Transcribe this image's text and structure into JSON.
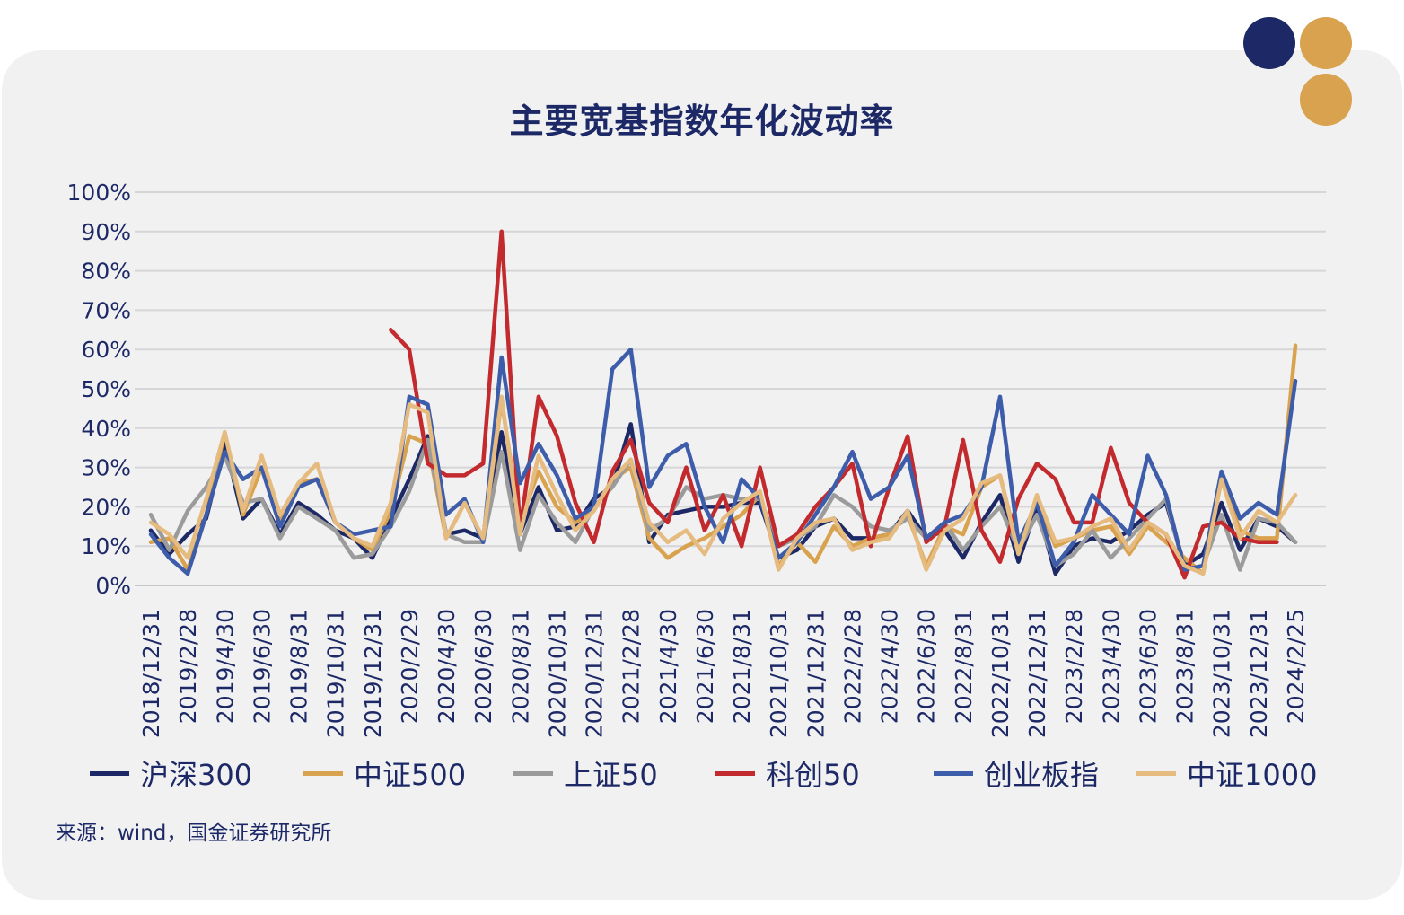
{
  "title": "主要宽基指数年化波动率",
  "source": "来源：wind，国金证券研究所",
  "decor": {
    "dot1": "#1d2966",
    "dot2": "#d9a24f",
    "dot3": "#d9a24f"
  },
  "chart_data": {
    "type": "line",
    "title": "主要宽基指数年化波动率",
    "ylim": [
      0,
      100
    ],
    "yticks": [
      "0%",
      "10%",
      "20%",
      "30%",
      "40%",
      "50%",
      "60%",
      "70%",
      "80%",
      "90%",
      "100%"
    ],
    "grid": true,
    "legend_position": "bottom",
    "x": [
      "2018/12/31",
      "2019/1/31",
      "2019/2/28",
      "2019/3/31",
      "2019/4/30",
      "2019/5/31",
      "2019/6/30",
      "2019/7/31",
      "2019/8/31",
      "2019/9/30",
      "2019/10/31",
      "2019/11/30",
      "2019/12/31",
      "2020/1/23",
      "2020/2/29",
      "2020/3/31",
      "2020/4/30",
      "2020/5/31",
      "2020/6/30",
      "2020/7/31",
      "2020/8/31",
      "2020/9/30",
      "2020/10/31",
      "2020/11/30",
      "2020/12/31",
      "2021/1/31",
      "2021/2/28",
      "2021/3/31",
      "2021/4/30",
      "2021/5/31",
      "2021/6/30",
      "2021/7/31",
      "2021/8/31",
      "2021/9/30",
      "2021/10/31",
      "2021/11/30",
      "2021/12/31",
      "2022/1/31",
      "2022/2/28",
      "2022/3/31",
      "2022/4/30",
      "2022/5/31",
      "2022/6/30",
      "2022/7/31",
      "2022/8/31",
      "2022/9/30",
      "2022/10/31",
      "2022/11/30",
      "2022/12/31",
      "2023/1/31",
      "2023/2/28",
      "2023/3/31",
      "2023/4/30",
      "2023/5/31",
      "2023/6/30",
      "2023/7/31",
      "2023/8/31",
      "2023/9/30",
      "2023/10/31",
      "2023/11/30",
      "2023/12/31",
      "2024/1/31",
      "2024/2/25"
    ],
    "x_tick_labels": [
      "2018/12/31",
      "2019/2/28",
      "2019/4/30",
      "2019/6/30",
      "2019/8/31",
      "2019/10/31",
      "2019/12/31",
      "2020/2/29",
      "2020/4/30",
      "2020/6/30",
      "2020/8/31",
      "2020/10/31",
      "2020/12/31",
      "2021/2/28",
      "2021/4/30",
      "2021/6/30",
      "2021/8/31",
      "2021/10/31",
      "2021/12/31",
      "2022/2/28",
      "2022/4/30",
      "2022/6/30",
      "2022/8/31",
      "2022/10/31",
      "2022/12/31",
      "2023/2/28",
      "2023/4/30",
      "2023/6/30",
      "2023/8/31",
      "2023/10/31",
      "2023/12/31",
      "2024/2/25"
    ],
    "series": [
      {
        "name": "沪深300",
        "color": "#1d2966",
        "values": [
          14,
          8,
          13,
          17,
          36,
          17,
          22,
          13,
          21,
          18,
          14,
          12,
          7,
          17,
          27,
          38,
          13,
          14,
          12,
          39,
          13,
          25,
          14,
          15,
          22,
          25,
          41,
          11,
          18,
          19,
          20,
          20,
          21,
          21,
          7,
          9,
          15,
          17,
          12,
          12,
          13,
          19,
          12,
          14,
          7,
          16,
          23,
          6,
          20,
          3,
          10,
          12,
          11,
          14,
          18,
          21,
          5,
          8,
          21,
          9,
          17,
          15,
          11
        ]
      },
      {
        "name": "中证500",
        "color": "#d9a24f",
        "values": [
          11,
          12,
          4,
          18,
          39,
          18,
          30,
          16,
          26,
          27,
          16,
          12,
          9,
          19,
          38,
          36,
          12,
          21,
          12,
          47,
          16,
          29,
          20,
          16,
          19,
          27,
          30,
          12,
          7,
          10,
          12,
          15,
          18,
          23,
          5,
          11,
          6,
          15,
          10,
          12,
          13,
          18,
          5,
          15,
          13,
          25,
          28,
          9,
          22,
          10,
          12,
          14,
          15,
          8,
          15,
          11,
          7,
          3,
          27,
          14,
          12,
          12,
          61
        ]
      },
      {
        "name": "上证50",
        "color": "#9b9b9c",
        "values": [
          18,
          9,
          19,
          25,
          33,
          21,
          22,
          12,
          20,
          17,
          14,
          7,
          8,
          15,
          24,
          37,
          13,
          11,
          11,
          34,
          9,
          23,
          16,
          11,
          20,
          25,
          32,
          14,
          17,
          25,
          22,
          23,
          22,
          22,
          10,
          12,
          15,
          23,
          20,
          15,
          14,
          17,
          12,
          16,
          9,
          15,
          20,
          9,
          18,
          5,
          8,
          14,
          7,
          12,
          17,
          22,
          4,
          5,
          18,
          4,
          17,
          16,
          11
        ]
      },
      {
        "name": "科创50",
        "color": "#c22a2e",
        "values": [
          null,
          null,
          null,
          null,
          null,
          null,
          null,
          null,
          null,
          null,
          null,
          null,
          null,
          65,
          60,
          31,
          28,
          28,
          31,
          90,
          14,
          48,
          38,
          21,
          11,
          29,
          37,
          21,
          16,
          30,
          14,
          23,
          10,
          30,
          10,
          13,
          20,
          25,
          31,
          10,
          25,
          38,
          11,
          15,
          37,
          14,
          6,
          22,
          31,
          27,
          16,
          16,
          35,
          21,
          16,
          13,
          2,
          15,
          16,
          12,
          11,
          11,
          null
        ]
      },
      {
        "name": "创业板指",
        "color": "#3d5daa",
        "values": [
          13,
          7,
          3,
          18,
          34,
          27,
          30,
          15,
          25,
          27,
          16,
          13,
          14,
          15,
          48,
          46,
          18,
          22,
          11,
          58,
          26,
          36,
          28,
          17,
          20,
          55,
          60,
          25,
          33,
          36,
          20,
          11,
          27,
          22,
          7,
          11,
          18,
          25,
          34,
          22,
          25,
          33,
          12,
          16,
          18,
          25,
          48,
          11,
          21,
          5,
          11,
          23,
          18,
          13,
          33,
          23,
          4,
          5,
          29,
          17,
          21,
          18,
          52
        ]
      },
      {
        "name": "中证1000",
        "color": "#e6bb7f",
        "values": [
          16,
          13,
          7,
          22,
          39,
          19,
          33,
          18,
          26,
          31,
          16,
          12,
          10,
          21,
          46,
          44,
          12,
          21,
          12,
          48,
          13,
          33,
          23,
          14,
          19,
          27,
          32,
          16,
          11,
          14,
          8,
          17,
          21,
          24,
          4,
          12,
          16,
          17,
          9,
          11,
          12,
          19,
          4,
          14,
          17,
          26,
          28,
          8,
          23,
          11,
          12,
          15,
          17,
          9,
          16,
          13,
          5,
          3,
          27,
          12,
          19,
          16,
          23
        ]
      }
    ]
  }
}
